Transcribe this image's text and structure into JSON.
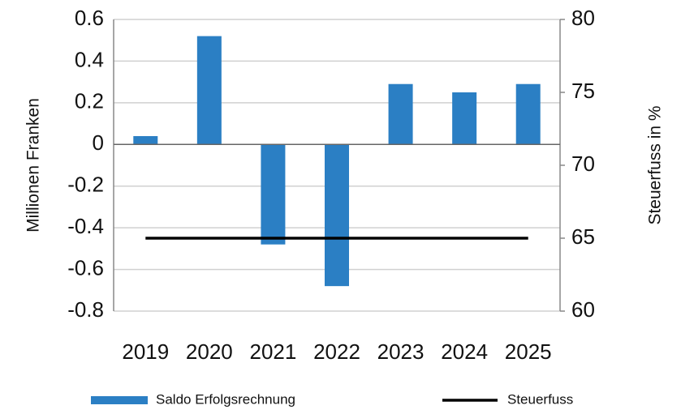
{
  "chart_data": {
    "type": "bar-line",
    "categories": [
      "2019",
      "2020",
      "2021",
      "2022",
      "2023",
      "2024",
      "2025"
    ],
    "series": [
      {
        "name": "Saldo Erfolgsrechnung",
        "color": "#2b7fc4",
        "type": "bar",
        "axis": "y",
        "values": [
          0.04,
          0.52,
          -0.48,
          -0.68,
          0.29,
          0.25,
          0.29
        ]
      },
      {
        "name": "Steuerfuss",
        "color": "#000000",
        "type": "line",
        "axis": "y2",
        "values": [
          65,
          65,
          65,
          65,
          65,
          65,
          65
        ]
      }
    ],
    "ylabel": "Millionen Franken",
    "y2label": "Steuerfuss in %",
    "ylim": [
      -0.8,
      0.6
    ],
    "yticks": [
      -0.8,
      -0.6,
      -0.4,
      -0.2,
      0,
      0.2,
      0.4,
      0.6
    ],
    "y2lim": [
      60,
      80
    ],
    "y2ticks": [
      60,
      65,
      70,
      75,
      80
    ],
    "grid": true,
    "legend": "bottom"
  }
}
